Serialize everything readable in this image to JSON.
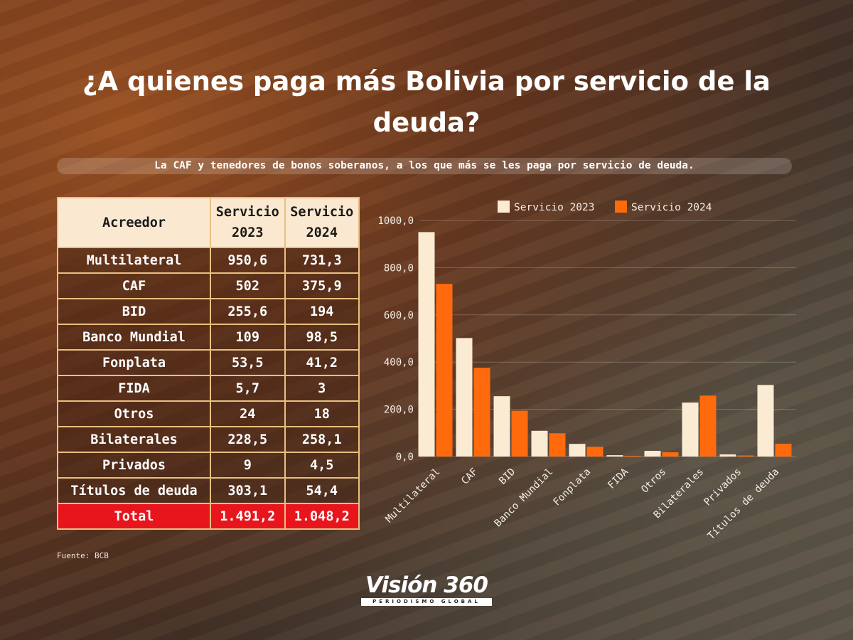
{
  "title": "¿A quienes paga más Bolivia por servicio de la deuda?",
  "subtitle": "La CAF y tenedores de bonos soberanos, a los que más se les paga por servicio de deuda.",
  "table": {
    "headers": [
      "Acreedor",
      "Servicio 2023",
      "Servicio 2024"
    ],
    "rows": [
      [
        "Multilateral",
        "950,6",
        "731,3"
      ],
      [
        "CAF",
        "502",
        "375,9"
      ],
      [
        "BID",
        "255,6",
        "194"
      ],
      [
        "Banco Mundial",
        "109",
        "98,5"
      ],
      [
        "Fonplata",
        "53,5",
        "41,2"
      ],
      [
        "FIDA",
        "5,7",
        "3"
      ],
      [
        "Otros",
        "24",
        "18"
      ],
      [
        "Bilaterales",
        "228,5",
        "258,1"
      ],
      [
        "Privados",
        "9",
        "4,5"
      ],
      [
        "Títulos de deuda",
        "303,1",
        "54,4"
      ]
    ],
    "total": [
      "Total",
      "1.491,2",
      "1.048,2"
    ]
  },
  "source": "Fuente: BCB",
  "logo": {
    "name": "Visión 360",
    "tagline": "PERIODISMO GLOBAL"
  },
  "colors": {
    "series_2023": "#fcebd3",
    "series_2024": "#ff6a0d",
    "total_row": "#e8151d",
    "table_border": "#e9bf7f"
  },
  "chart_data": {
    "type": "bar",
    "categories": [
      "Multilateral",
      "CAF",
      "BID",
      "Banco Mundial",
      "Fonplata",
      "FIDA",
      "Otros",
      "Bilaterales",
      "Privados",
      "Títulos de deuda"
    ],
    "series": [
      {
        "name": "Servicio 2023",
        "values": [
          950.6,
          502,
          255.6,
          109,
          53.5,
          5.7,
          24,
          228.5,
          9,
          303.1
        ]
      },
      {
        "name": "Servicio 2024",
        "values": [
          731.3,
          375.9,
          194,
          98.5,
          41.2,
          3,
          18,
          258.1,
          4.5,
          54.4
        ]
      }
    ],
    "yticks": [
      "0,0",
      "200,0",
      "400,0",
      "600,0",
      "800,0",
      "1000,0"
    ],
    "ylim": [
      0,
      1000
    ],
    "legend_position": "top",
    "grid": true
  }
}
